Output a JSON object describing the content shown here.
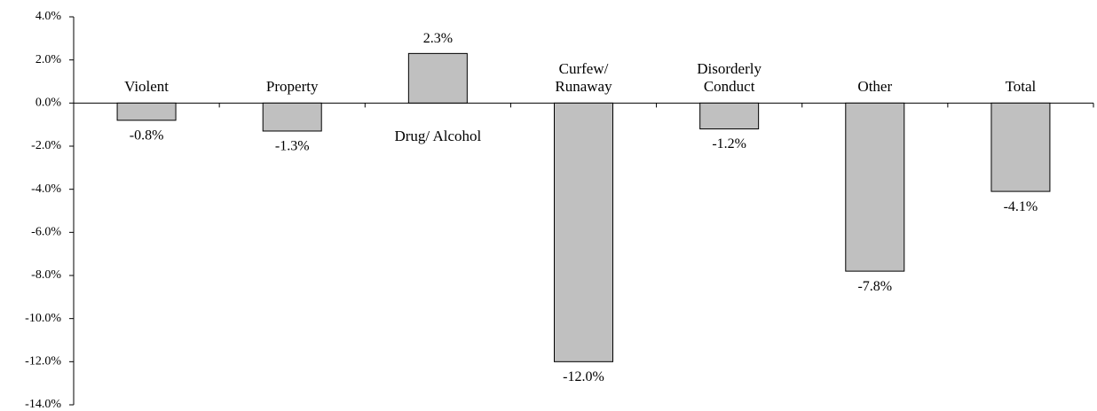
{
  "chart_data": {
    "type": "bar",
    "categories": [
      "Violent",
      "Property",
      "Drug/ Alcohol",
      "Curfew/ Runaway",
      "Disorderly Conduct",
      "Other",
      "Total"
    ],
    "values": [
      -0.8,
      -1.3,
      2.3,
      -12.0,
      -1.2,
      -7.8,
      -4.1
    ],
    "value_labels": [
      "-0.8%",
      "-1.3%",
      "2.3%",
      "-12.0%",
      "-1.2%",
      "-7.8%",
      "-4.1%"
    ],
    "color": "#c0c0c0",
    "ylim": [
      -14,
      4
    ],
    "yticks": [
      {
        "value": -14,
        "label": "-14.0%"
      },
      {
        "value": -12,
        "label": "-12.0%"
      },
      {
        "value": -10,
        "label": "-10.0%"
      },
      {
        "value": -8,
        "label": "-8.0%"
      },
      {
        "value": -6,
        "label": "-6.0%"
      },
      {
        "value": -4,
        "label": "-4.0%"
      },
      {
        "value": -2,
        "label": "-2.0%"
      },
      {
        "value": 0,
        "label": "0.0%"
      },
      {
        "value": 2,
        "label": "2.0%"
      },
      {
        "value": 4,
        "label": "4.0%"
      }
    ],
    "grid": false
  }
}
